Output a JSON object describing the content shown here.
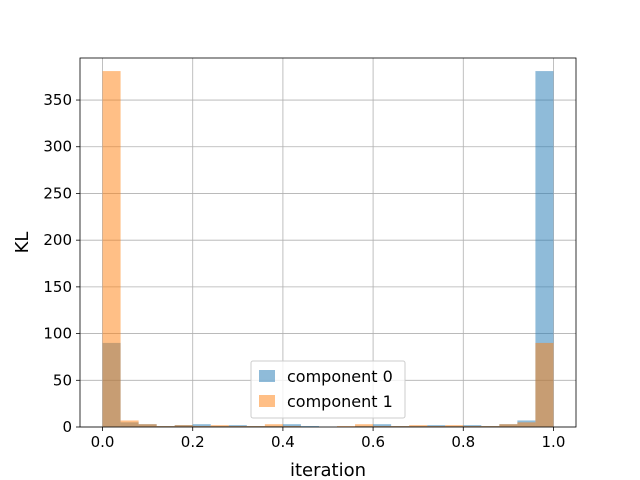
{
  "chart_data": {
    "type": "bar",
    "title": "",
    "xlabel": "iteration",
    "ylabel": "KL",
    "xlim": [
      -0.05,
      1.05
    ],
    "ylim": [
      0,
      395
    ],
    "xticks": [
      0.0,
      0.2,
      0.4,
      0.6,
      0.8,
      1.0
    ],
    "xtick_labels": [
      "0.0",
      "0.2",
      "0.4",
      "0.6",
      "0.8",
      "1.0"
    ],
    "yticks": [
      0,
      50,
      100,
      150,
      200,
      250,
      300,
      350
    ],
    "ytick_labels": [
      "0",
      "50",
      "100",
      "150",
      "200",
      "250",
      "300",
      "350"
    ],
    "grid": true,
    "legend_position": "bottom-center",
    "bin_edges": [
      0.0,
      0.04,
      0.08,
      0.12,
      0.16,
      0.2,
      0.24,
      0.28,
      0.32,
      0.36,
      0.4,
      0.44,
      0.48,
      0.52,
      0.56,
      0.6,
      0.64,
      0.68,
      0.72,
      0.76,
      0.8,
      0.84,
      0.88,
      0.92,
      0.96,
      1.0
    ],
    "series": [
      {
        "name": "component 0",
        "color": "#1f77b4",
        "alpha": 0.5,
        "values": [
          90,
          5,
          3,
          1,
          2,
          3,
          1,
          2,
          1,
          1,
          3,
          1,
          0,
          0,
          1,
          3,
          1,
          1,
          2,
          1,
          2,
          1,
          3,
          7,
          381
        ]
      },
      {
        "name": "component 1",
        "color": "#ff7f0e",
        "alpha": 0.5,
        "values": [
          381,
          7,
          3,
          1,
          2,
          1,
          2,
          1,
          1,
          3,
          1,
          0,
          0,
          1,
          3,
          1,
          1,
          2,
          1,
          2,
          1,
          1,
          3,
          5,
          90
        ]
      }
    ]
  }
}
